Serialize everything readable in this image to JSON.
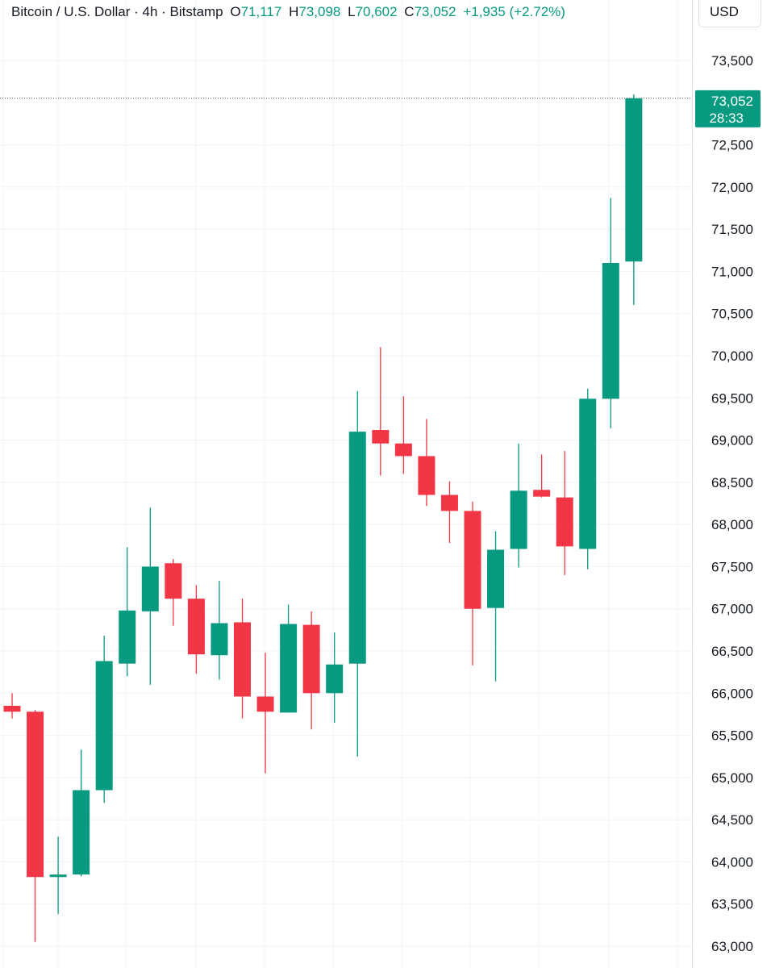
{
  "header": {
    "symbol": "Bitcoin / U.S. Dollar · 4h · Bitstamp",
    "open_label": "O",
    "open": "71,117",
    "high_label": "H",
    "high": "73,098",
    "low_label": "L",
    "low": "70,602",
    "close_label": "C",
    "close": "73,052",
    "change": "+1,935 (+2.72%)"
  },
  "currency": "USD",
  "price_label": {
    "price": "73,052",
    "countdown": "28:33"
  },
  "colors": {
    "up": "#089981",
    "down": "#f23645",
    "grid": "#f0f3fa",
    "text": "#131722"
  },
  "chart_data": {
    "type": "candlestick",
    "ylim": [
      62900,
      73700
    ],
    "yticks": [
      63000,
      63500,
      64000,
      64500,
      65000,
      65500,
      66000,
      66500,
      67000,
      67500,
      68000,
      68500,
      69000,
      69500,
      70000,
      70500,
      71000,
      71500,
      72000,
      72500,
      73500
    ],
    "ytick_labels": [
      "63,000",
      "63,500",
      "64,000",
      "64,500",
      "65,000",
      "65,500",
      "66,000",
      "66,500",
      "67,000",
      "67,500",
      "68,000",
      "68,500",
      "69,000",
      "69,500",
      "70,000",
      "70,500",
      "71,000",
      "71,500",
      "72,000",
      "72,500",
      "73,500"
    ],
    "last_price": 73052,
    "candles": [
      {
        "o": 65850,
        "h": 66000,
        "l": 65700,
        "c": 65780
      },
      {
        "o": 65780,
        "h": 65800,
        "l": 63050,
        "c": 63820
      },
      {
        "o": 63820,
        "h": 64300,
        "l": 63380,
        "c": 63850
      },
      {
        "o": 63850,
        "h": 65330,
        "l": 63830,
        "c": 64850
      },
      {
        "o": 64850,
        "h": 66680,
        "l": 64700,
        "c": 66380
      },
      {
        "o": 66350,
        "h": 67730,
        "l": 66200,
        "c": 66980
      },
      {
        "o": 66970,
        "h": 68200,
        "l": 66100,
        "c": 67500
      },
      {
        "o": 67540,
        "h": 67590,
        "l": 66800,
        "c": 67120
      },
      {
        "o": 67120,
        "h": 67280,
        "l": 66230,
        "c": 66460
      },
      {
        "o": 66450,
        "h": 67330,
        "l": 66160,
        "c": 66830
      },
      {
        "o": 66840,
        "h": 67120,
        "l": 65700,
        "c": 65960
      },
      {
        "o": 65960,
        "h": 66480,
        "l": 65050,
        "c": 65780
      },
      {
        "o": 65770,
        "h": 67050,
        "l": 65770,
        "c": 66820
      },
      {
        "o": 66810,
        "h": 66970,
        "l": 65570,
        "c": 66000
      },
      {
        "o": 66000,
        "h": 66720,
        "l": 65650,
        "c": 66340
      },
      {
        "o": 66350,
        "h": 69580,
        "l": 65250,
        "c": 69100
      },
      {
        "o": 69120,
        "h": 70100,
        "l": 68580,
        "c": 68960
      },
      {
        "o": 68960,
        "h": 69520,
        "l": 68600,
        "c": 68810
      },
      {
        "o": 68810,
        "h": 69250,
        "l": 68220,
        "c": 68350
      },
      {
        "o": 68350,
        "h": 68510,
        "l": 67780,
        "c": 68160
      },
      {
        "o": 68160,
        "h": 68270,
        "l": 66330,
        "c": 67000
      },
      {
        "o": 67010,
        "h": 67920,
        "l": 66140,
        "c": 67700
      },
      {
        "o": 67710,
        "h": 68960,
        "l": 67490,
        "c": 68400
      },
      {
        "o": 68410,
        "h": 68830,
        "l": 68320,
        "c": 68330
      },
      {
        "o": 68320,
        "h": 68870,
        "l": 67400,
        "c": 67740
      },
      {
        "o": 67710,
        "h": 69610,
        "l": 67470,
        "c": 69490
      },
      {
        "o": 69490,
        "h": 71870,
        "l": 69140,
        "c": 71100
      },
      {
        "o": 71117,
        "h": 73098,
        "l": 70602,
        "c": 73052
      }
    ]
  }
}
